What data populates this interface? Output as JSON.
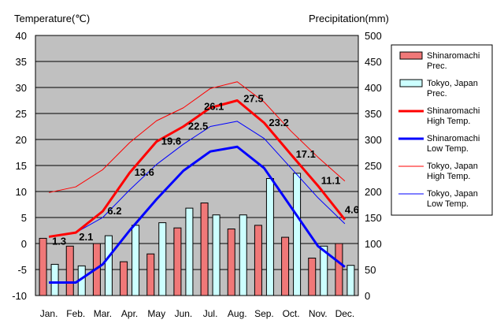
{
  "chart_data": {
    "type": "bar+line",
    "categories": [
      "Jan.",
      "Feb.",
      "Mar.",
      "Apr.",
      "May",
      "Jun.",
      "Jul.",
      "Aug.",
      "Sep.",
      "Oct.",
      "Nov.",
      "Dec."
    ],
    "left_axis": {
      "label": "Temperature(℃)",
      "min": -10,
      "max": 40,
      "step": 5
    },
    "right_axis": {
      "label": "Precipitation(mm)",
      "min": 0,
      "max": 500,
      "step": 50
    },
    "bar_series": [
      {
        "name": "Shinaromachi Prec.",
        "legend_lines": [
          "Shinaromachi",
          "Prec."
        ],
        "color": "#f07878",
        "axis": "right",
        "values": [
          110,
          95,
          100,
          65,
          80,
          130,
          178,
          128,
          135,
          112,
          72,
          100
        ]
      },
      {
        "name": "Tokyo, Japan Prec.",
        "legend_lines": [
          "Tokyo, Japan",
          "Prec."
        ],
        "color": "#ccffff",
        "axis": "right",
        "values": [
          60,
          57,
          115,
          135,
          140,
          168,
          155,
          155,
          225,
          235,
          95,
          58
        ]
      }
    ],
    "line_series": [
      {
        "name": "Shinaromachi High Temp.",
        "legend_lines": [
          "Shinaromachi",
          "High Temp."
        ],
        "color": "#ff0000",
        "width": 3,
        "axis": "left",
        "values": [
          1.3,
          2.1,
          6.2,
          13.6,
          19.6,
          22.5,
          26.1,
          27.5,
          23.2,
          17.1,
          11.1,
          4.6
        ],
        "labels": [
          "1.3",
          "2.1",
          "6.2",
          "13.6",
          "19.6",
          "22.5",
          "26.1",
          "27.5",
          "23.2",
          "17.1",
          "11.1",
          "4.6"
        ]
      },
      {
        "name": "Shinaromachi Low Temp.",
        "legend_lines": [
          "Shinaromachi",
          "Low Temp."
        ],
        "color": "#0000ff",
        "width": 3,
        "axis": "left",
        "values": [
          -7.5,
          -7.5,
          -4.0,
          2.5,
          8.5,
          14.0,
          17.7,
          18.6,
          14.5,
          7.0,
          -0.5,
          -4.5
        ]
      },
      {
        "name": "Tokyo, Japan High Temp.",
        "legend_lines": [
          "Tokyo, Japan",
          "High Temp."
        ],
        "color": "#ff0000",
        "width": 1,
        "axis": "left",
        "values": [
          9.8,
          10.9,
          14.2,
          19.4,
          23.6,
          26.1,
          29.8,
          31.1,
          27.2,
          21.6,
          16.6,
          12.0
        ]
      },
      {
        "name": "Tokyo, Japan Low Temp.",
        "legend_lines": [
          "Tokyo, Japan",
          "Low Temp."
        ],
        "color": "#0000ff",
        "width": 1,
        "axis": "left",
        "values": [
          1.2,
          2.1,
          5.0,
          10.3,
          15.2,
          19.1,
          22.5,
          23.5,
          20.2,
          14.5,
          8.8,
          3.8
        ]
      }
    ],
    "grid": true,
    "legend_position": "right"
  }
}
